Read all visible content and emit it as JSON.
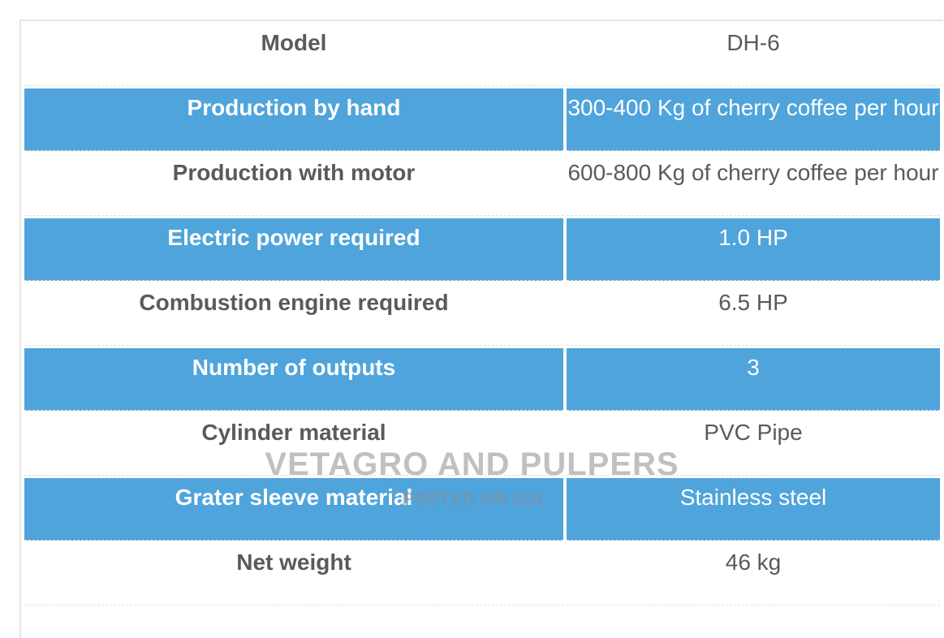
{
  "table": {
    "rows": [
      [
        "Model",
        "DH-6"
      ],
      [
        "Production by hand",
        "300-400 Kg of cherry coffee per hour"
      ],
      [
        "Production with motor",
        "600-800 Kg of cherry coffee per hour"
      ],
      [
        "Electric power required",
        "1.0 HP"
      ],
      [
        "Combustion engine required",
        "6.5 HP"
      ],
      [
        "Number of outputs",
        "3"
      ],
      [
        "Cylinder material",
        "PVC Pipe"
      ],
      [
        "Grater sleeve material",
        "Stainless steel"
      ],
      [
        "Net weight",
        "46 kg"
      ]
    ]
  },
  "watermark": {
    "title": "VETAGRO AND PULPERS",
    "subtitle": "POSTED ON JIJI"
  }
}
